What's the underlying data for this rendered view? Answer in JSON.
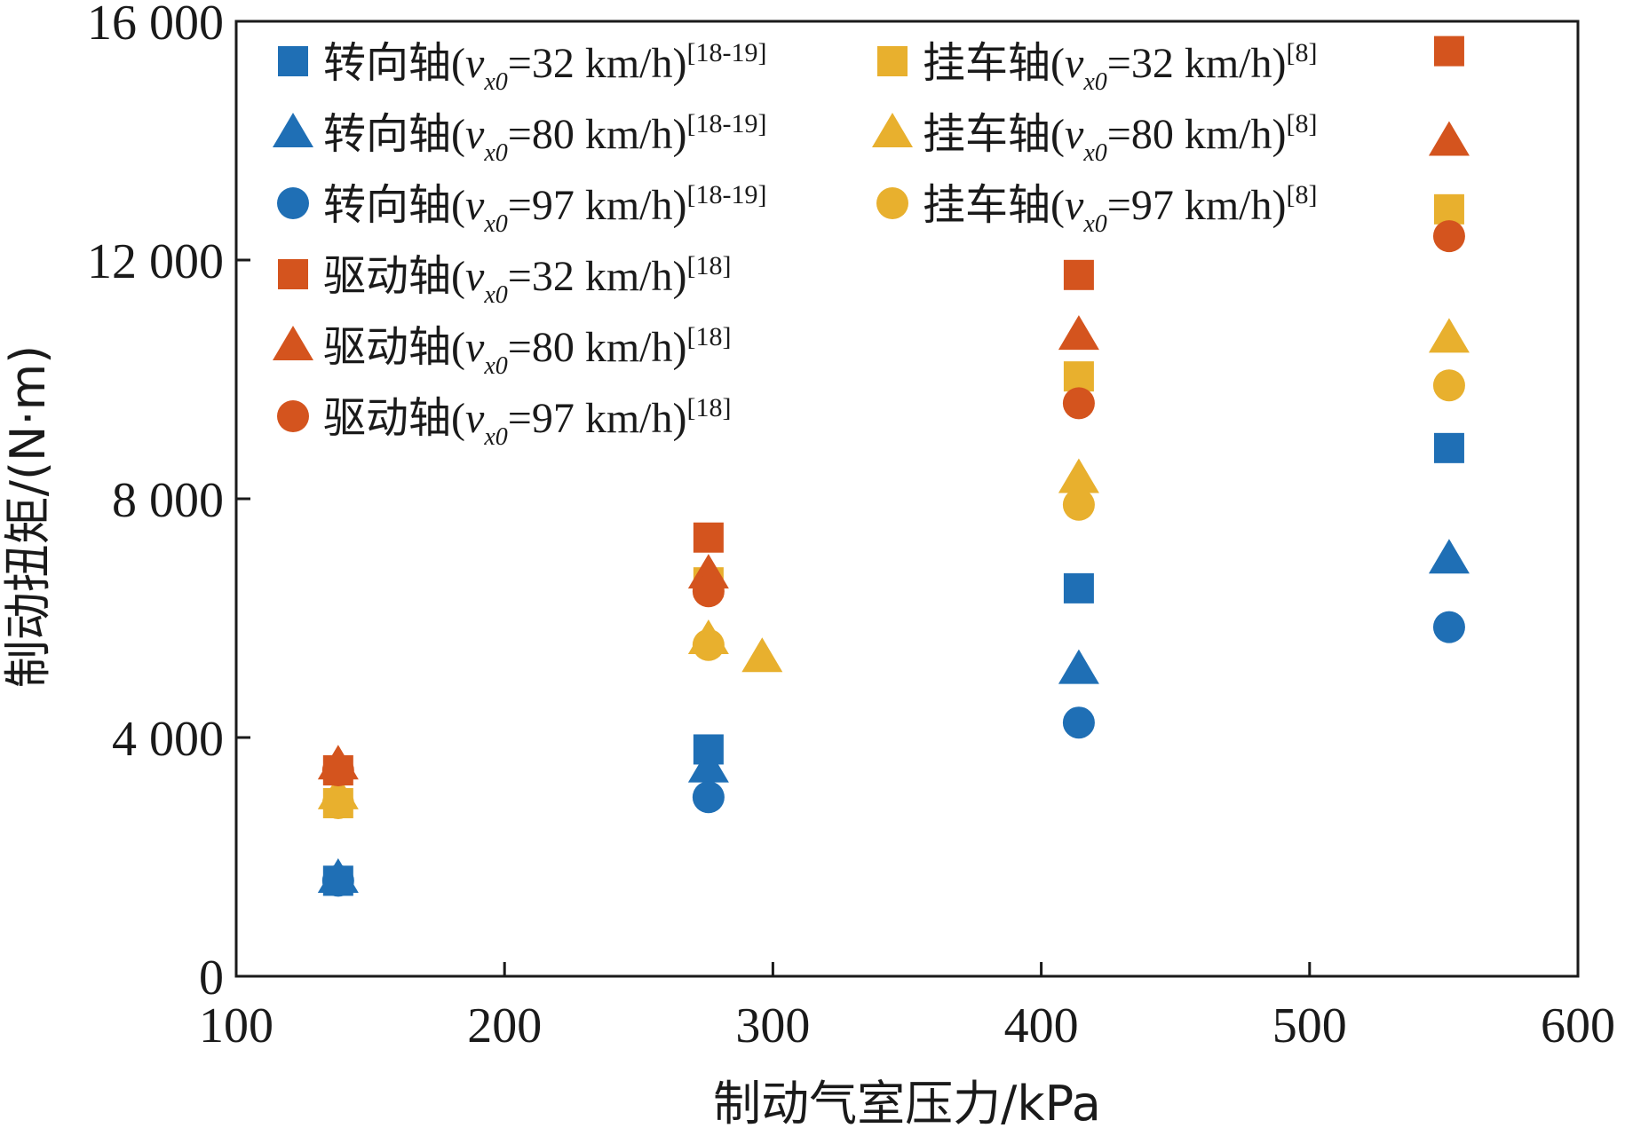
{
  "chart_data": {
    "type": "scatter",
    "xlabel": "制动气室压力/kPa",
    "ylabel": "制动扭矩/(N·m)",
    "xlim": [
      100,
      600
    ],
    "ylim": [
      0,
      16000
    ],
    "x_ticks": [
      100,
      200,
      300,
      400,
      500,
      600
    ],
    "y_ticks": [
      0,
      4000,
      8000,
      12000,
      16000
    ],
    "x_tick_labels": [
      "100",
      "200",
      "300",
      "400",
      "500",
      "600"
    ],
    "y_tick_labels": [
      "0",
      "4 000",
      "8 000",
      "12 000",
      "16 000"
    ],
    "grid": false,
    "legend_position": "top-left",
    "series": [
      {
        "name": "转向轴(v_x0=32 km/h)[18-19]",
        "axle": "转向轴",
        "speed": "32",
        "ref": "[18-19]",
        "marker": "square",
        "color": "#1f6fb5",
        "points": [
          [
            138,
            1600
          ],
          [
            276,
            3800
          ],
          [
            414,
            6500
          ],
          [
            552,
            8850
          ]
        ]
      },
      {
        "name": "转向轴(v_x0=80 km/h)[18-19]",
        "axle": "转向轴",
        "speed": "80",
        "ref": "[18-19]",
        "marker": "triangle",
        "color": "#1f6fb5",
        "points": [
          [
            138,
            1650
          ],
          [
            276,
            3500
          ],
          [
            414,
            5150
          ],
          [
            552,
            7000
          ]
        ]
      },
      {
        "name": "转向轴(v_x0=97 km/h)[18-19]",
        "axle": "转向轴",
        "speed": "97",
        "ref": "[18-19]",
        "marker": "circle",
        "color": "#1f6fb5",
        "points": [
          [
            138,
            1600
          ],
          [
            276,
            3000
          ],
          [
            414,
            4250
          ],
          [
            552,
            5850
          ]
        ]
      },
      {
        "name": "驱动轴(v_x0=32 km/h)[18]",
        "axle": "驱动轴",
        "speed": "32",
        "ref": "[18]",
        "marker": "square",
        "color": "#d4541e",
        "points": [
          [
            138,
            3450
          ],
          [
            276,
            7350
          ],
          [
            414,
            11750
          ],
          [
            552,
            15500
          ]
        ]
      },
      {
        "name": "驱动轴(v_x0=80 km/h)[18]",
        "axle": "驱动轴",
        "speed": "80",
        "ref": "[18]",
        "marker": "triangle",
        "color": "#d4541e",
        "points": [
          [
            138,
            3550
          ],
          [
            276,
            6750
          ],
          [
            414,
            10750
          ],
          [
            552,
            14000
          ]
        ]
      },
      {
        "name": "驱动轴(v_x0=97 km/h)[18]",
        "axle": "驱动轴",
        "speed": "97",
        "ref": "[18]",
        "marker": "circle",
        "color": "#d4541e",
        "points": [
          [
            138,
            3450
          ],
          [
            276,
            6450
          ],
          [
            414,
            9600
          ],
          [
            552,
            12400
          ]
        ]
      },
      {
        "name": "挂车轴(v_x0=32 km/h)[8]",
        "axle": "挂车轴",
        "speed": "32",
        "ref": "[8]",
        "marker": "square",
        "color": "#e8b02e",
        "points": [
          [
            138,
            2900
          ],
          [
            276,
            6600
          ],
          [
            414,
            10050
          ],
          [
            552,
            12850
          ]
        ]
      },
      {
        "name": "挂车轴(v_x0=80 km/h)[8]",
        "axle": "挂车轴",
        "speed": "80",
        "ref": "[8]",
        "marker": "triangle",
        "color": "#e8b02e",
        "points": [
          [
            138,
            3050
          ],
          [
            276,
            5650
          ],
          [
            296,
            5350
          ],
          [
            414,
            8350
          ],
          [
            552,
            10700
          ]
        ]
      },
      {
        "name": "挂车轴(v_x0=97 km/h)[8]",
        "axle": "挂车轴",
        "speed": "97",
        "ref": "[8]",
        "marker": "circle",
        "color": "#e8b02e",
        "points": [
          [
            138,
            2900
          ],
          [
            276,
            5550
          ],
          [
            414,
            7900
          ],
          [
            552,
            9900
          ]
        ]
      }
    ],
    "draw_order": [
      6,
      7,
      8,
      3,
      4,
      5,
      0,
      1,
      2
    ]
  }
}
